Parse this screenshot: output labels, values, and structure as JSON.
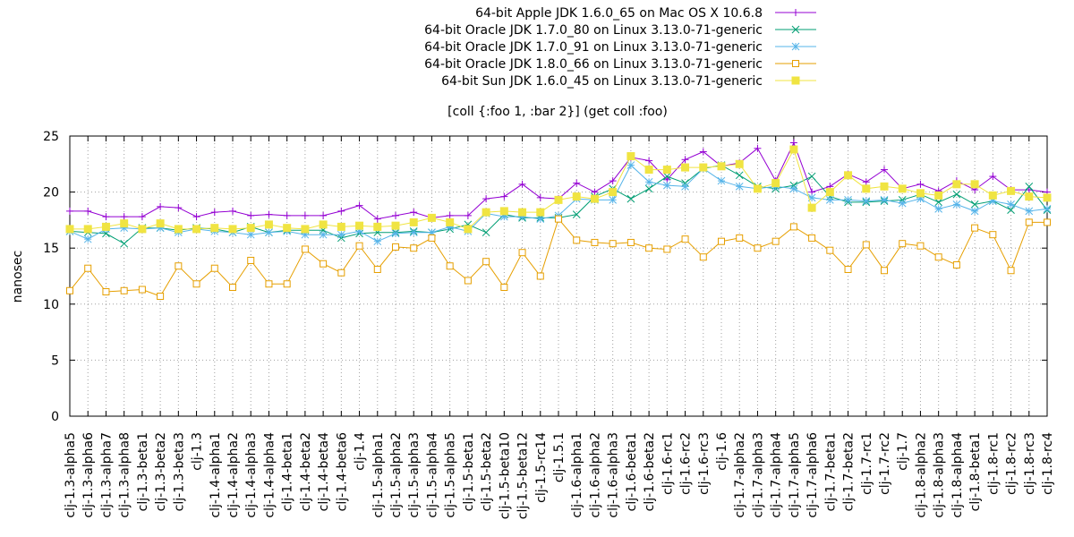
{
  "chart_data": {
    "type": "line",
    "title": "[coll {:foo 1, :bar 2}] (get coll :foo)",
    "xlabel": "",
    "ylabel": "nanosec",
    "ylim": [
      0,
      25
    ],
    "yticks": [
      0,
      5,
      10,
      15,
      20,
      25
    ],
    "grid": true,
    "legend_position": "top-center",
    "categories": [
      "clj-1.3-alpha5",
      "clj-1.3-alpha6",
      "clj-1.3-alpha7",
      "clj-1.3-alpha8",
      "clj-1.3-beta1",
      "clj-1.3-beta2",
      "clj-1.3-beta3",
      "clj-1.3",
      "clj-1.4-alpha1",
      "clj-1.4-alpha2",
      "clj-1.4-alpha3",
      "clj-1.4-alpha4",
      "clj-1.4-beta1",
      "clj-1.4-beta2",
      "clj-1.4-beta4",
      "clj-1.4-beta6",
      "clj-1.4",
      "clj-1.5-alpha1",
      "clj-1.5-alpha2",
      "clj-1.5-alpha3",
      "clj-1.5-alpha4",
      "clj-1.5-alpha5",
      "clj-1.5-beta1",
      "clj-1.5-beta2",
      "clj-1.5-beta10",
      "clj-1.5-beta12",
      "clj-1.5-rc14",
      "clj-1.5.1",
      "clj-1.6-alpha1",
      "clj-1.6-alpha2",
      "clj-1.6-alpha3",
      "clj-1.6-beta1",
      "clj-1.6-beta2",
      "clj-1.6-rc1",
      "clj-1.6-rc2",
      "clj-1.6-rc3",
      "clj-1.6",
      "clj-1.7-alpha2",
      "clj-1.7-alpha3",
      "clj-1.7-alpha4",
      "clj-1.7-alpha5",
      "clj-1.7-alpha6",
      "clj-1.7-beta1",
      "clj-1.7-beta2",
      "clj-1.7-rc1",
      "clj-1.7-rc2",
      "clj-1.7",
      "clj-1.8-alpha2",
      "clj-1.8-alpha3",
      "clj-1.8-alpha4",
      "clj-1.8-beta1",
      "clj-1.8-rc1",
      "clj-1.8-rc2",
      "clj-1.8-rc3",
      "clj-1.8-rc4"
    ],
    "series": [
      {
        "name": "64-bit Apple JDK 1.6.0_65 on Mac OS X 10.6.8",
        "color": "#9400d3",
        "marker": "plus",
        "values": [
          18.3,
          18.3,
          17.8,
          17.8,
          17.8,
          18.7,
          18.6,
          17.8,
          18.2,
          18.3,
          17.9,
          18.0,
          17.9,
          17.9,
          17.9,
          18.3,
          18.8,
          17.6,
          17.9,
          18.2,
          17.7,
          17.9,
          17.9,
          19.4,
          19.6,
          20.7,
          19.5,
          19.4,
          20.8,
          20.0,
          21.0,
          23.1,
          22.8,
          21.1,
          22.9,
          23.6,
          22.3,
          22.6,
          23.9,
          21.0,
          24.4,
          20.0,
          20.5,
          21.6,
          20.9,
          22.0,
          20.3,
          20.7,
          20.1,
          21.0,
          20.2,
          21.4,
          20.2,
          20.2,
          20.0
        ]
      },
      {
        "name": "64-bit Oracle JDK 1.7.0_80 on Linux 3.13.0-71-generic",
        "color": "#009e73",
        "marker": "cross",
        "values": [
          16.5,
          16.4,
          16.3,
          15.4,
          16.8,
          16.8,
          16.6,
          16.8,
          16.7,
          16.4,
          16.9,
          16.4,
          16.6,
          16.6,
          16.6,
          15.9,
          16.3,
          16.4,
          16.4,
          16.5,
          16.4,
          16.7,
          17.1,
          16.4,
          18.0,
          17.7,
          17.7,
          17.7,
          18.0,
          19.6,
          20.3,
          19.4,
          20.3,
          21.4,
          20.8,
          22.1,
          22.4,
          21.5,
          20.5,
          20.3,
          20.6,
          21.4,
          19.6,
          19.1,
          19.1,
          19.2,
          19.3,
          19.8,
          19.1,
          19.8,
          18.9,
          19.2,
          18.4,
          20.5,
          18.4
        ]
      },
      {
        "name": "64-bit Oracle JDK 1.7.0_91 on Linux 3.13.0-71-generic",
        "color": "#56b4e9",
        "marker": "star",
        "values": [
          16.5,
          15.8,
          16.7,
          16.8,
          16.7,
          16.8,
          16.4,
          16.7,
          16.5,
          16.4,
          16.2,
          16.4,
          16.5,
          16.2,
          16.2,
          16.2,
          16.5,
          15.6,
          16.3,
          16.4,
          16.4,
          16.9,
          16.5,
          18.1,
          17.8,
          17.8,
          17.6,
          17.9,
          19.4,
          19.3,
          19.3,
          22.4,
          20.9,
          20.6,
          20.5,
          22.1,
          21.0,
          20.5,
          20.3,
          20.5,
          20.3,
          19.5,
          19.3,
          19.3,
          19.2,
          19.3,
          19.0,
          19.4,
          18.5,
          18.9,
          18.3,
          19.2,
          18.9,
          18.3,
          18.5
        ]
      },
      {
        "name": "64-bit Oracle JDK 1.8.0_66 on Linux 3.13.0-71-generic",
        "color": "#e69f00",
        "marker": "square-open",
        "values": [
          11.2,
          13.2,
          11.1,
          11.2,
          11.3,
          10.7,
          13.4,
          11.8,
          13.2,
          11.5,
          13.9,
          11.8,
          11.8,
          14.9,
          13.6,
          12.8,
          15.2,
          13.1,
          15.1,
          15.0,
          15.9,
          13.4,
          12.1,
          13.8,
          11.5,
          14.6,
          12.5,
          17.6,
          15.7,
          15.5,
          15.4,
          15.5,
          15.0,
          14.9,
          15.8,
          14.2,
          15.6,
          15.9,
          15.0,
          15.6,
          16.9,
          15.9,
          14.8,
          13.1,
          15.3,
          13.0,
          15.4,
          15.2,
          14.2,
          13.5,
          16.8,
          16.2,
          13.0,
          17.3,
          17.3
        ]
      },
      {
        "name": "64-bit Sun JDK 1.6.0_45 on Linux 3.13.0-71-generic",
        "color": "#f0e442",
        "marker": "square-filled",
        "values": [
          16.7,
          16.7,
          16.9,
          17.2,
          16.7,
          17.2,
          16.7,
          16.7,
          16.8,
          16.7,
          16.8,
          17.1,
          16.8,
          16.7,
          17.1,
          16.9,
          17.0,
          16.9,
          17.0,
          17.3,
          17.7,
          17.3,
          16.7,
          18.2,
          18.3,
          18.2,
          18.2,
          19.3,
          19.6,
          19.4,
          20.0,
          23.2,
          22.0,
          22.0,
          22.2,
          22.2,
          22.3,
          22.5,
          20.3,
          20.8,
          23.8,
          18.6,
          20.0,
          21.5,
          20.3,
          20.5,
          20.3,
          19.9,
          19.7,
          20.7,
          20.7,
          19.7,
          20.1,
          19.6,
          19.5
        ]
      }
    ]
  }
}
